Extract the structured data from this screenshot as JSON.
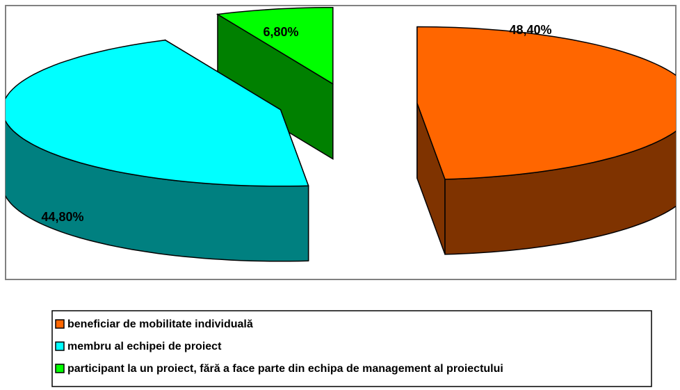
{
  "chart_data": {
    "type": "pie3d",
    "categories": [
      "beneficiar de mobilitate individuală",
      "membru al echipei de proiect",
      "participant la un proiect, fără a face parte din echipa de management al proiectului"
    ],
    "values": [
      48.4,
      44.8,
      6.8
    ],
    "value_labels": [
      "48,40%",
      "44,80%",
      "6,80%"
    ],
    "colors": [
      "#FF6600",
      "#00FFFF",
      "#00FF00"
    ],
    "side_colors": [
      "#7F3300",
      "#008080",
      "#008000"
    ],
    "legend": "bottom"
  }
}
